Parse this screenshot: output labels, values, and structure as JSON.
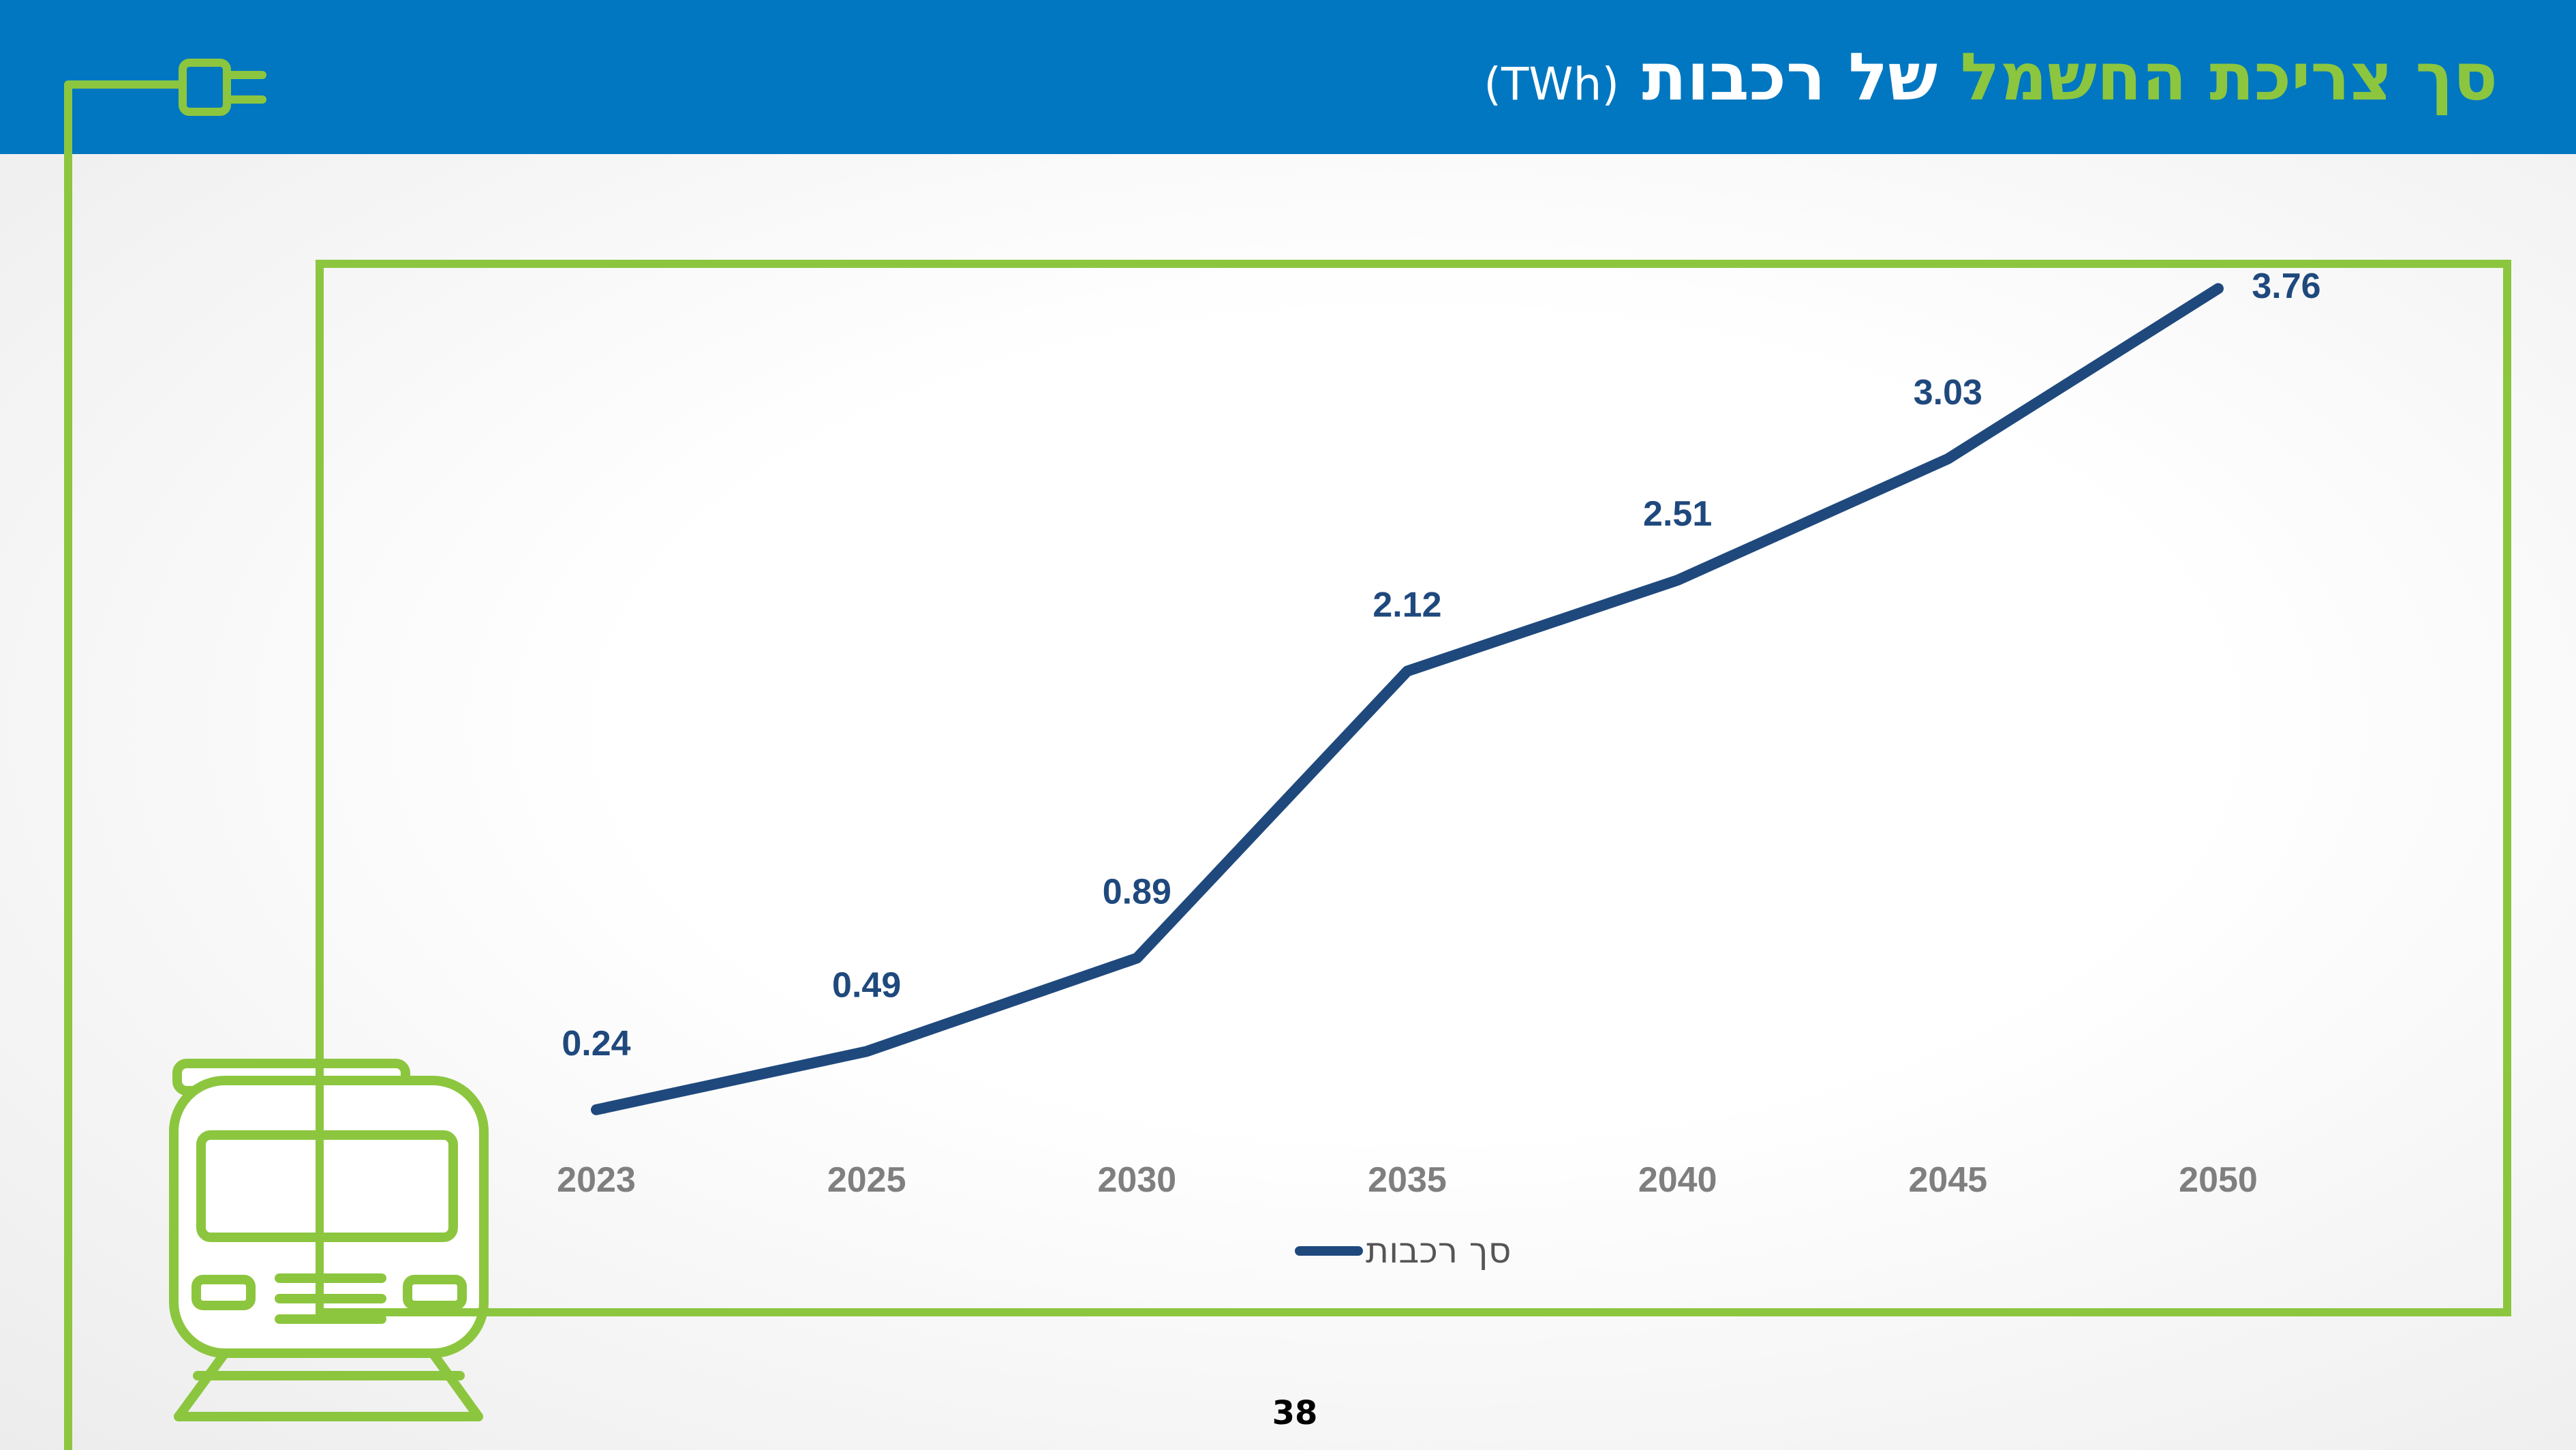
{
  "header": {
    "title_green": "סך צריכת החשמל",
    "title_white": "של רכבות",
    "title_unit": "(TWh)"
  },
  "page_number": "38",
  "colors": {
    "header_bg": "#0077c0",
    "accent_green": "#8cc63f",
    "series_line": "#1f497d",
    "tick_label": "#7f7f7f"
  },
  "icons": [
    "plug-icon",
    "train-icon"
  ],
  "chart_data": {
    "type": "line",
    "title": "סך צריכת החשמל של רכבות (TWh)",
    "categories": [
      "2023",
      "2025",
      "2030",
      "2035",
      "2040",
      "2045",
      "2050"
    ],
    "series": [
      {
        "name": "סך רכבות",
        "values": [
          0.24,
          0.49,
          0.89,
          2.12,
          2.51,
          3.03,
          3.76
        ]
      }
    ],
    "data_labels": [
      "0.24",
      "0.49",
      "0.89",
      "2.12",
      "2.51",
      "3.03",
      "3.76"
    ],
    "ylim": [
      0,
      4.5
    ],
    "grid": false,
    "legend": "bottom"
  }
}
